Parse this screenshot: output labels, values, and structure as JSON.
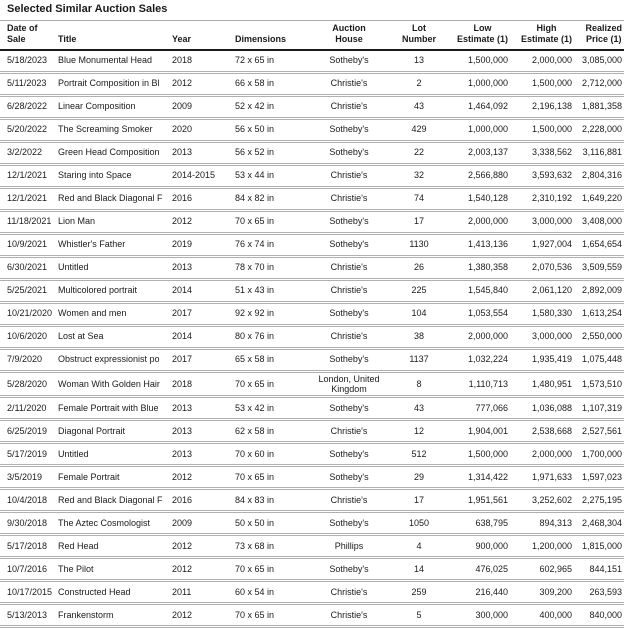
{
  "page_title": "Selected Similar Auction Sales",
  "colors": {
    "text": "#1a1a1a",
    "grid_line": "#b0b0b0",
    "header_rule": "#1a1a1a",
    "background": "#ffffff"
  },
  "table": {
    "columns": [
      {
        "id": "date-of-sale",
        "label": "Date of Sale"
      },
      {
        "id": "title",
        "label": "Title"
      },
      {
        "id": "year",
        "label": "Year"
      },
      {
        "id": "dimensions",
        "label": "Dimensions"
      },
      {
        "id": "auction-house",
        "label": "Auction\nHouse"
      },
      {
        "id": "lot-number",
        "label": "Lot\nNumber"
      },
      {
        "id": "low-estimate",
        "label": "Low\nEstimate (1)"
      },
      {
        "id": "high-estimate",
        "label": "High\nEstimate (1)"
      },
      {
        "id": "realized-price",
        "label": "Realized\nPrice (1)"
      }
    ],
    "rows": [
      [
        "5/18/2023",
        "Blue Monumental Head",
        "2018",
        "72 x 65 in",
        "Sotheby's",
        "13",
        "1,500,000",
        "2,000,000",
        "3,085,000"
      ],
      [
        "5/11/2023",
        "Portrait Composition in Bl",
        "2012",
        "66 x 58 in",
        "Christie's",
        "2",
        "1,000,000",
        "1,500,000",
        "2,712,000"
      ],
      [
        "6/28/2022",
        "Linear Composition",
        "2009",
        "52 x 42 in",
        "Christie's",
        "43",
        "1,464,092",
        "2,196,138",
        "1,881,358"
      ],
      [
        "5/20/2022",
        "The Screaming Smoker",
        "2020",
        "56 x 50 in",
        "Sotheby's",
        "429",
        "1,000,000",
        "1,500,000",
        "2,228,000"
      ],
      [
        "3/2/2022",
        "Green Head Composition",
        "2013",
        "56 x 52 in",
        "Sotheby's",
        "22",
        "2,003,137",
        "3,338,562",
        "3,116,881"
      ],
      [
        "12/1/2021",
        "Staring into Space",
        "2014-2015",
        "53 x 44 in",
        "Christie's",
        "32",
        "2,566,880",
        "3,593,632",
        "2,804,316"
      ],
      [
        "12/1/2021",
        "Red and Black Diagonal F",
        "2016",
        "84 x 82 in",
        "Christie's",
        "74",
        "1,540,128",
        "2,310,192",
        "1,649,220"
      ],
      [
        "11/18/2021",
        "Lion Man",
        "2012",
        "70 x 65 in",
        "Sotheby's",
        "17",
        "2,000,000",
        "3,000,000",
        "3,408,000"
      ],
      [
        "10/9/2021",
        "Whistler's Father",
        "2019",
        "76 x 74 in",
        "Sotheby's",
        "1130",
        "1,413,136",
        "1,927,004",
        "1,654,654"
      ],
      [
        "6/30/2021",
        "Untitled",
        "2013",
        "78 x 70 in",
        "Christie's",
        "26",
        "1,380,358",
        "2,070,536",
        "3,509,559"
      ],
      [
        "5/25/2021",
        "Multicolored portrait",
        "2014",
        "51 x 43 in",
        "Christie's",
        "225",
        "1,545,840",
        "2,061,120",
        "2,892,009"
      ],
      [
        "10/21/2020",
        "Women and men",
        "2017",
        "92 x 92 in",
        "Sotheby's",
        "104",
        "1,053,554",
        "1,580,330",
        "1,613,254"
      ],
      [
        "10/6/2020",
        "Lost at Sea",
        "2014",
        "80 x 76 in",
        "Christie's",
        "38",
        "2,000,000",
        "3,000,000",
        "2,550,000"
      ],
      [
        "7/9/2020",
        "Obstruct expressionist po",
        "2017",
        "65 x 58 in",
        "Sotheby's",
        "1137",
        "1,032,224",
        "1,935,419",
        "1,075,448"
      ],
      [
        "5/28/2020",
        "Woman With Golden Hair",
        "2018",
        "70 x 65 in",
        "London, United Kingdom",
        "8",
        "1,110,713",
        "1,480,951",
        "1,573,510"
      ],
      [
        "2/11/2020",
        "Female Portrait with Blue",
        "2013",
        "53 x 42 in",
        "Sotheby's",
        "43",
        "777,066",
        "1,036,088",
        "1,107,319"
      ],
      [
        "6/25/2019",
        "Diagonal Portrait",
        "2013",
        "62 x 58 in",
        "Christie's",
        "12",
        "1,904,001",
        "2,538,668",
        "2,527,561"
      ],
      [
        "5/17/2019",
        "Untitled",
        "2013",
        "70 x 60 in",
        "Sotheby's",
        "512",
        "1,500,000",
        "2,000,000",
        "1,700,000"
      ],
      [
        "3/5/2019",
        "Female Portrait",
        "2012",
        "70 x 65 in",
        "Sotheby's",
        "29",
        "1,314,422",
        "1,971,633",
        "1,597,023"
      ],
      [
        "10/4/2018",
        "Red and Black Diagonal F",
        "2016",
        "84 x 83 in",
        "Christie's",
        "17",
        "1,951,561",
        "3,252,602",
        "2,275,195"
      ],
      [
        "9/30/2018",
        "The Aztec Cosmologist",
        "2009",
        "50 x 50 in",
        "Sotheby's",
        "1050",
        "638,795",
        "894,313",
        "2,468,304"
      ],
      [
        "5/17/2018",
        "Red Head",
        "2012",
        "73 x 68 in",
        "Phillips",
        "4",
        "900,000",
        "1,200,000",
        "1,815,000"
      ],
      [
        "10/7/2016",
        "The Pilot",
        "2012",
        "70 x 65 in",
        "Sotheby's",
        "14",
        "476,025",
        "602,965",
        "844,151"
      ],
      [
        "10/17/2015",
        "Constructed Head",
        "2011",
        "60 x 54 in",
        "Christie's",
        "259",
        "216,440",
        "309,200",
        "263,593"
      ],
      [
        "5/13/2013",
        "Frankenstorm",
        "2012",
        "70 x 65 in",
        "Christie's",
        "5",
        "300,000",
        "400,000",
        "840,000"
      ]
    ]
  }
}
